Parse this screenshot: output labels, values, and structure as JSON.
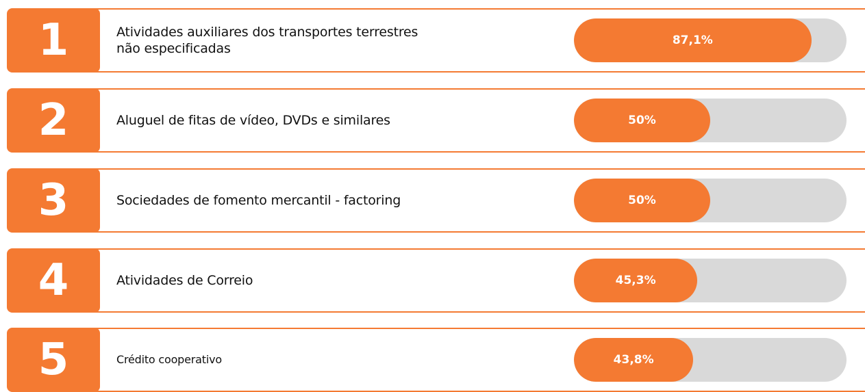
{
  "chart_data": {
    "type": "bar",
    "ranks": [
      "1",
      "2",
      "3",
      "4",
      "5"
    ],
    "categories": [
      "Atividades auxiliares dos transportes terrestres\nnão especificadas",
      "Aluguel de fitas de vídeo, DVDs e similares",
      "Sociedades de fomento mercantil - factoring",
      "Atividades de Correio",
      "Crédito cooperativo"
    ],
    "values": [
      87.1,
      50,
      50,
      45.3,
      43.8
    ],
    "value_labels": [
      "87,1%",
      "50%",
      "50%",
      "45,3%",
      "43,8%"
    ],
    "xlim": [
      0,
      100
    ],
    "color": "#f47a32"
  }
}
